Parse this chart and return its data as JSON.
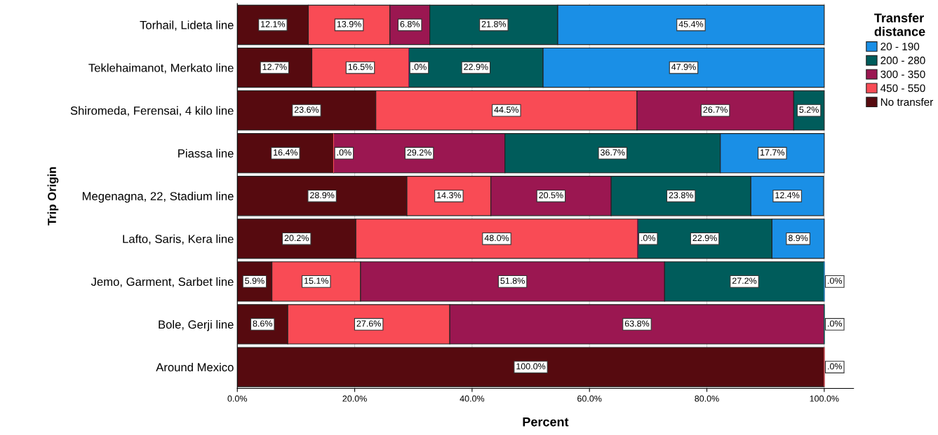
{
  "chart_data": {
    "type": "bar",
    "orientation": "horizontal",
    "stacked": true,
    "xlabel": "Percent",
    "ylabel": "Trip Origin",
    "legend_title": "Transfer\ndistance",
    "legend": "right",
    "categories": [
      "Torhail, Lideta line",
      "Teklehaimanot, Merkato line",
      "Shiromeda, Ferensai, 4 kilo line",
      "Piassa line",
      "Megenagna, 22, Stadium line",
      "Lafto, Saris, Kera line",
      "Jemo, Garment, Sarbet line",
      "Bole, Gerji line",
      "Around Mexico"
    ],
    "series": [
      {
        "name": "No transfer",
        "color": "#560a0f",
        "values": [
          12.1,
          12.7,
          23.6,
          16.4,
          28.9,
          20.2,
          5.9,
          8.6,
          100.0
        ],
        "value_labels": [
          "12.1%",
          "12.7%",
          "23.6%",
          "16.4%",
          "28.9%",
          "20.2%",
          "5.9%",
          "8.6%",
          "100.0%"
        ]
      },
      {
        "name": "450 - 550",
        "color": "#f94b55",
        "values": [
          13.9,
          16.5,
          44.5,
          0.0,
          14.3,
          48.0,
          15.1,
          27.6,
          0.0
        ],
        "value_labels": [
          "13.9%",
          "16.5%",
          "44.5%",
          ".0%",
          "14.3%",
          "48.0%",
          "15.1%",
          "27.6%",
          ".0%"
        ]
      },
      {
        "name": "300 - 350",
        "color": "#9b1751",
        "values": [
          6.8,
          0.0,
          26.7,
          29.2,
          20.5,
          0.0,
          51.8,
          63.8,
          null
        ],
        "value_labels": [
          "6.8%",
          ".0%",
          "26.7%",
          "29.2%",
          "20.5%",
          ".0%",
          "51.8%",
          "63.8%",
          null
        ]
      },
      {
        "name": "200 - 280",
        "color": "#005c5b",
        "values": [
          21.8,
          22.9,
          5.2,
          36.7,
          23.8,
          22.9,
          27.2,
          0.0,
          null
        ],
        "value_labels": [
          "21.8%",
          "22.9%",
          "5.2%",
          "36.7%",
          "23.8%",
          "22.9%",
          "27.2%",
          ".0%",
          null
        ]
      },
      {
        "name": "20 - 190",
        "color": "#1a8fe6",
        "values": [
          45.4,
          47.9,
          null,
          17.7,
          12.4,
          8.9,
          0.0,
          null,
          null
        ],
        "value_labels": [
          "45.4%",
          "47.9%",
          null,
          "17.7%",
          "12.4%",
          "8.9%",
          ".0%",
          null,
          null
        ]
      }
    ],
    "xlim": [
      0,
      105
    ],
    "xticks": [
      {
        "value": 0,
        "label": "0.0%"
      },
      {
        "value": 20,
        "label": "20.0%"
      },
      {
        "value": 40,
        "label": "40.0%"
      },
      {
        "value": 60,
        "label": "60.0%"
      },
      {
        "value": 80,
        "label": "80.0%"
      },
      {
        "value": 100,
        "label": "100.0%"
      }
    ],
    "grid": "x"
  }
}
